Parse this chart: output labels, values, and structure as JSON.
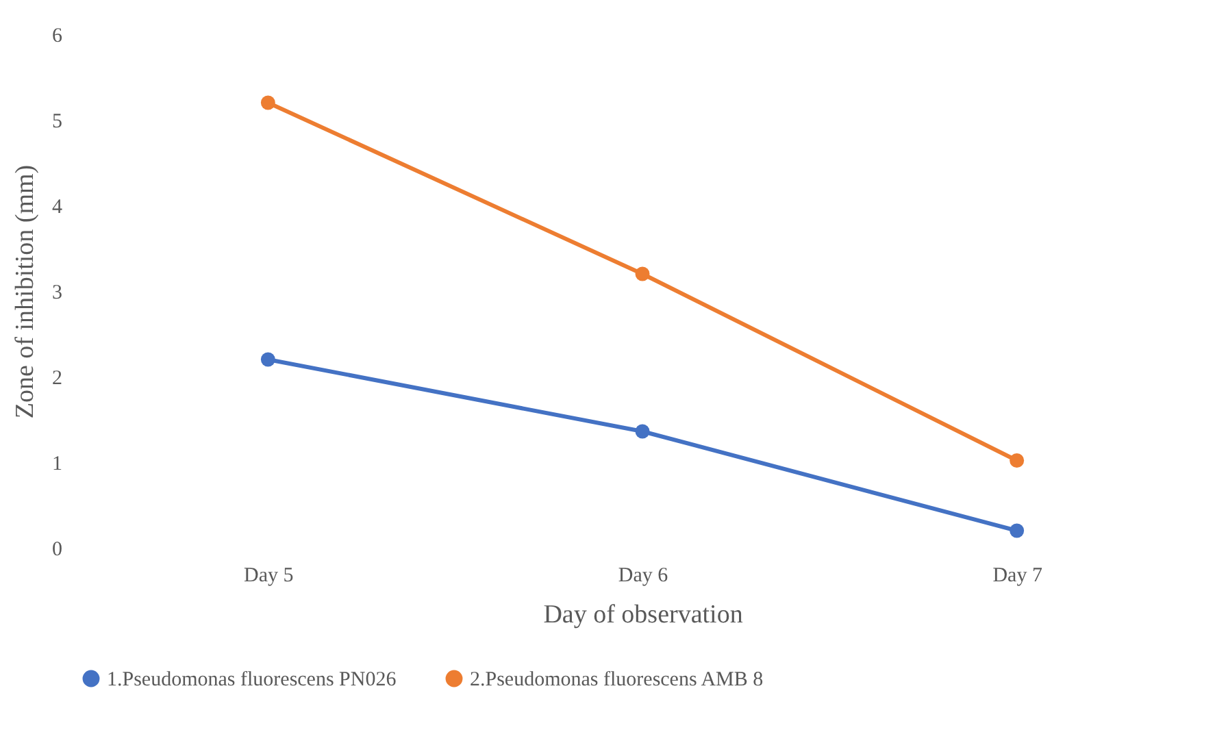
{
  "chart_data": {
    "type": "line",
    "xlabel": "Day of observation",
    "ylabel": "Zone of inhibition (mm)",
    "categories": [
      "Day 5",
      "Day 6",
      "Day 7"
    ],
    "series": [
      {
        "name": "1.Pseudomonas fluorescens  PN026",
        "color": "#4472c4",
        "values": [
          2.2,
          1.36,
          0.2
        ]
      },
      {
        "name": "2.Pseudomonas fluorescens  AMB 8",
        "color": "#ed7d31",
        "values": [
          5.2,
          3.2,
          1.02
        ]
      }
    ],
    "ylim": [
      0,
      6
    ],
    "yticks": [
      0,
      1,
      2,
      3,
      4,
      5,
      6
    ],
    "grid": false,
    "legend": "bottom",
    "marker": "circle",
    "line_style": "solid"
  }
}
